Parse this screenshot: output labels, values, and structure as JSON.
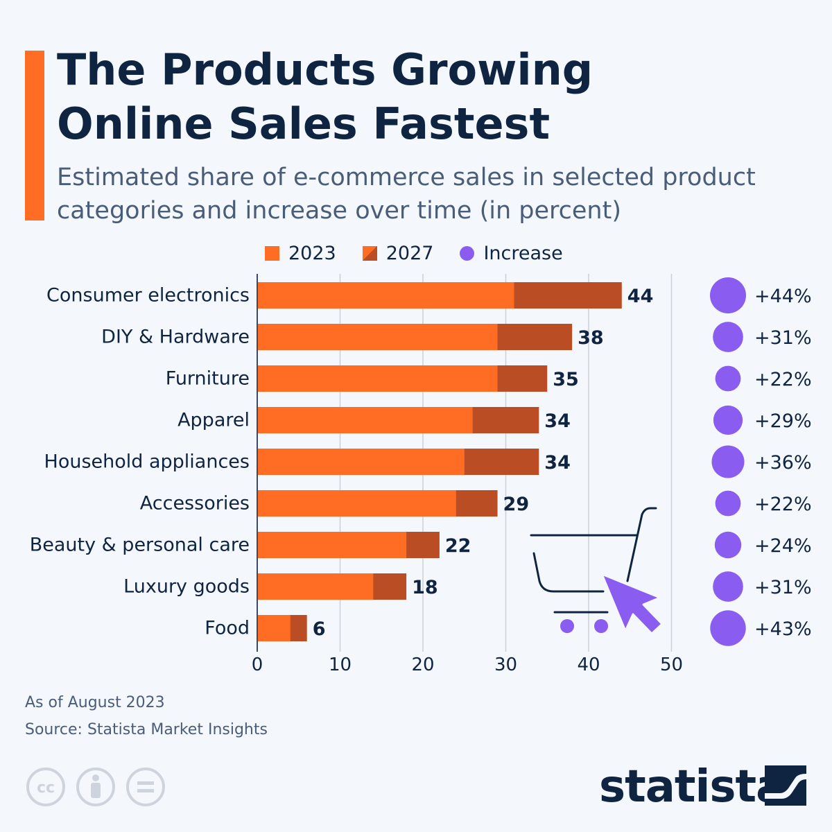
{
  "title_line1": "The Products Growing",
  "title_line2": "Online Sales Fastest",
  "subtitle_line1": "Estimated share of e-commerce sales in selected product",
  "subtitle_line2": "categories and increase over time (in percent)",
  "colors": {
    "y2023": "#FF6D24",
    "y2027": "#BB4D24",
    "increase": "#8A5CF0",
    "accent": "#FF6D24",
    "text": "#0F2440"
  },
  "chart_data": {
    "type": "bar",
    "orientation": "horizontal",
    "stacked_overlay": true,
    "categories": [
      "Consumer electronics",
      "DIY & Hardware",
      "Furniture",
      "Apparel",
      "Household appliances",
      "Accessories",
      "Beauty & personal care",
      "Luxury goods",
      "Food"
    ],
    "series": [
      {
        "name": "2023",
        "values": [
          31,
          29,
          29,
          26,
          25,
          24,
          18,
          14,
          4
        ]
      },
      {
        "name": "2027",
        "values": [
          44,
          38,
          35,
          34,
          34,
          29,
          22,
          18,
          6
        ]
      },
      {
        "name": "Increase",
        "values": [
          44,
          31,
          22,
          29,
          36,
          22,
          24,
          31,
          43
        ]
      }
    ],
    "data_labels": [
      "44",
      "38",
      "35",
      "34",
      "34",
      "29",
      "22",
      "18",
      "6"
    ],
    "increase_labels": [
      "+44%",
      "+31%",
      "+22%",
      "+29%",
      "+36%",
      "+22%",
      "+24%",
      "+31%",
      "+43%"
    ],
    "x_ticks": [
      "0",
      "10",
      "20",
      "30",
      "40",
      "50"
    ],
    "xlim": [
      0,
      50
    ],
    "grid": true,
    "legend": [
      "2023",
      "2027",
      "Increase"
    ],
    "legend_placement": "top"
  },
  "footer": {
    "note": "As of August 2023",
    "source": "Source: Statista Market Insights"
  },
  "brand": "statista",
  "license_icons": [
    "cc-icon",
    "attribution-icon",
    "no-derivatives-icon"
  ]
}
